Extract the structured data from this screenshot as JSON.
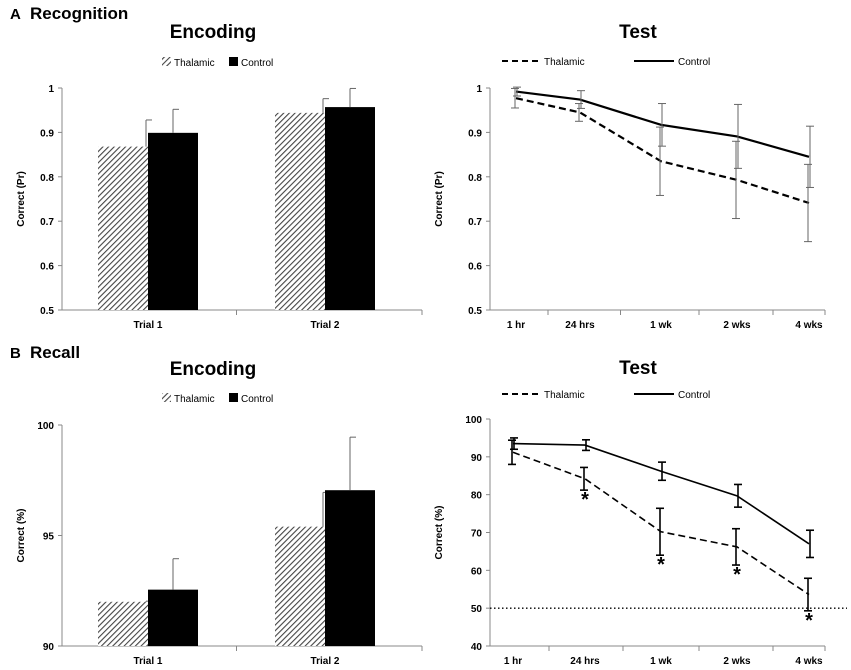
{
  "sections": [
    {
      "letter": "A",
      "title": "Recognition"
    },
    {
      "letter": "B",
      "title": "Recall"
    }
  ],
  "colors": {
    "thalamic": "#555555",
    "control": "#000000",
    "axis": "#888888"
  },
  "chart_data": [
    {
      "id": "recognition-encoding",
      "type": "bar",
      "title": "Encoding",
      "xlabel": "",
      "ylabel": "Correct (Pr)",
      "ylim": [
        0.5,
        1
      ],
      "yticks": [
        0.5,
        0.6,
        0.7,
        0.8,
        0.9,
        1
      ],
      "ytick_labels": [
        "0.5",
        "0.6",
        "0.7",
        "0.8",
        "0.9",
        "1"
      ],
      "categories": [
        "Trial 1",
        "Trial 2"
      ],
      "legend": "top",
      "series": [
        {
          "name": "Thalamic",
          "style": "hatched",
          "values": [
            0.868,
            0.944
          ],
          "errors": [
            0.06,
            0.032
          ]
        },
        {
          "name": "Control",
          "style": "solid",
          "values": [
            0.899,
            0.957
          ],
          "errors": [
            0.053,
            0.042
          ]
        }
      ],
      "annotations": []
    },
    {
      "id": "recognition-test",
      "type": "line",
      "title": "Test",
      "xlabel": "",
      "ylabel": "Correct (Pr)",
      "ylim": [
        0.5,
        1
      ],
      "yticks": [
        0.5,
        0.6,
        0.7,
        0.8,
        0.9,
        1
      ],
      "ytick_labels": [
        "0.5",
        "0.6",
        "0.7",
        "0.8",
        "0.9",
        "1"
      ],
      "categories": [
        "1 hr",
        "24 hrs",
        "1 wk",
        "2 wks",
        "4 wks"
      ],
      "legend": "top",
      "series": [
        {
          "name": "Thalamic",
          "style": "dashed",
          "values": [
            0.977,
            0.945,
            0.835,
            0.793,
            0.741
          ],
          "errors": [
            0.022,
            0.02,
            0.077,
            0.087,
            0.087
          ]
        },
        {
          "name": "Control",
          "style": "solid",
          "values": [
            0.992,
            0.974,
            0.917,
            0.891,
            0.845
          ],
          "errors": [
            0.01,
            0.02,
            0.048,
            0.072,
            0.069
          ]
        }
      ],
      "annotations": []
    },
    {
      "id": "recall-encoding",
      "type": "bar",
      "title": "Encoding",
      "xlabel": "",
      "ylabel": "Correct (%)",
      "ylim": [
        90,
        100
      ],
      "yticks": [
        90,
        95,
        100
      ],
      "ytick_labels": [
        "90",
        "95",
        "100"
      ],
      "categories": [
        "Trial 1",
        "Trial 2"
      ],
      "legend": "top",
      "series": [
        {
          "name": "Thalamic",
          "style": "hatched",
          "values": [
            92.0,
            95.4
          ],
          "errors": [
            0.03,
            1.55
          ]
        },
        {
          "name": "Control",
          "style": "solid",
          "values": [
            92.55,
            97.05
          ],
          "errors": [
            1.4,
            2.4
          ]
        }
      ],
      "annotations": []
    },
    {
      "id": "recall-test",
      "type": "line",
      "title": "Test",
      "xlabel": "",
      "ylabel": "Correct (%)",
      "ylim": [
        40,
        100
      ],
      "yticks": [
        40,
        50,
        60,
        70,
        80,
        90,
        100
      ],
      "ytick_labels": [
        "40",
        "50",
        "60",
        "70",
        "80",
        "90",
        "100"
      ],
      "categories": [
        "1 hr",
        "24 hrs",
        "1 wk",
        "2 wks",
        "4 wks"
      ],
      "legend": "top",
      "reference_line": {
        "y": 50,
        "style": "dotted"
      },
      "series": [
        {
          "name": "Thalamic",
          "style": "dashed",
          "values": [
            91.2,
            84.2,
            70.2,
            66.2,
            53.6
          ],
          "errors": [
            3.2,
            3.0,
            6.2,
            4.8,
            4.3
          ]
        },
        {
          "name": "Control",
          "style": "solid",
          "values": [
            93.5,
            93.1,
            86.2,
            79.7,
            67.0
          ],
          "errors": [
            1.5,
            1.4,
            2.4,
            3.0,
            3.6
          ]
        }
      ],
      "annotations": [
        {
          "text": "*",
          "category": "24 hrs"
        },
        {
          "text": "*",
          "category": "1 wk"
        },
        {
          "text": "*",
          "category": "2 wks"
        },
        {
          "text": "*",
          "category": "4 wks"
        }
      ]
    }
  ]
}
